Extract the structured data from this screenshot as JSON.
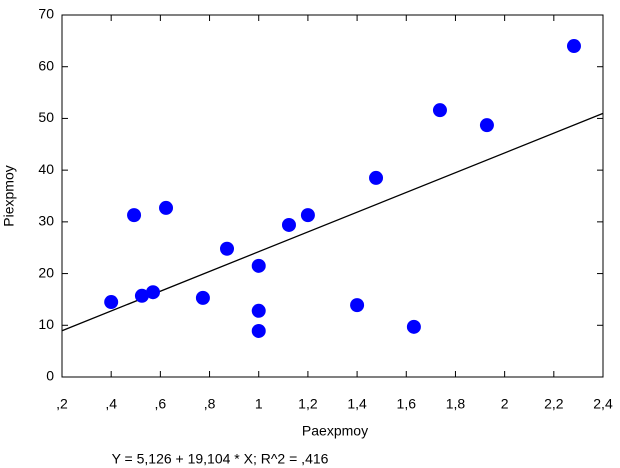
{
  "chart_data": {
    "type": "scatter",
    "x_label": "Paexpmoy",
    "y_label": "Piexpmoy",
    "color": "#0000ff",
    "x": [
      0.4,
      0.525,
      0.57,
      0.623,
      0.493,
      0.773,
      0.871,
      1.0,
      1.0,
      1.0,
      1.123,
      1.2,
      1.4,
      1.477,
      1.631,
      1.737,
      1.928,
      2.282
    ],
    "values": [
      14.5,
      15.7,
      16.4,
      32.7,
      31.3,
      15.3,
      24.8,
      21.5,
      12.8,
      8.9,
      29.4,
      31.3,
      13.9,
      38.5,
      9.7,
      51.6,
      48.7,
      64.0
    ],
    "regression": {
      "intercept": 5.126,
      "slope": 19.104,
      "label": "Y = 5,126 + 19,104 * X; R^2 = ,416"
    },
    "xlim": [
      0.2,
      2.4
    ],
    "xticks": [
      {
        "value": 0.2,
        "label": ",2"
      },
      {
        "value": 0.4,
        "label": ",4"
      },
      {
        "value": 0.6,
        "label": ",6"
      },
      {
        "value": 0.8,
        "label": ",8"
      },
      1,
      {
        "value": 1.2,
        "label": "1,2"
      },
      {
        "value": 1.4,
        "label": "1,4"
      },
      {
        "value": 1.6,
        "label": "1,6"
      },
      {
        "value": 1.8,
        "label": "1,8"
      },
      2,
      {
        "value": 2.2,
        "label": "2,2"
      },
      {
        "value": 2.4,
        "label": "2,4"
      }
    ],
    "ylim": [
      0,
      70
    ],
    "yticks": [
      0,
      10,
      20,
      30,
      40,
      50,
      60,
      70
    ]
  }
}
